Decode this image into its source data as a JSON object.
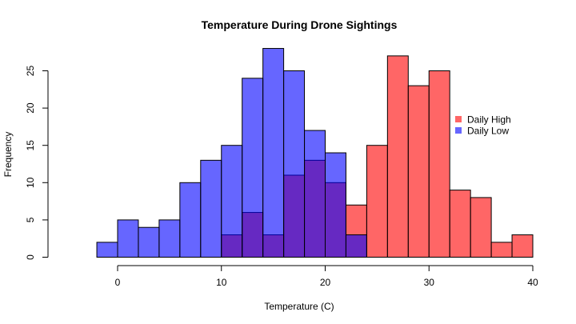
{
  "chart_data": {
    "type": "bar",
    "title": "Temperature During Drone Sightings",
    "xlabel": "Temperature (C)",
    "ylabel": "Frequency",
    "xlim": [
      -2,
      40
    ],
    "ylim": [
      0,
      28
    ],
    "x_ticks": [
      0,
      10,
      20,
      30,
      40
    ],
    "y_ticks": [
      0,
      5,
      10,
      15,
      20,
      25
    ],
    "bin_width": 2,
    "grid": false,
    "legend_position": "right",
    "series": [
      {
        "name": "Daily High",
        "color": "#ff6666",
        "bins": [
          {
            "x0": 10,
            "x1": 12,
            "count": 3
          },
          {
            "x0": 12,
            "x1": 14,
            "count": 6
          },
          {
            "x0": 14,
            "x1": 16,
            "count": 3
          },
          {
            "x0": 16,
            "x1": 18,
            "count": 11
          },
          {
            "x0": 18,
            "x1": 20,
            "count": 13
          },
          {
            "x0": 20,
            "x1": 22,
            "count": 10
          },
          {
            "x0": 22,
            "x1": 24,
            "count": 7
          },
          {
            "x0": 24,
            "x1": 26,
            "count": 15
          },
          {
            "x0": 26,
            "x1": 28,
            "count": 27
          },
          {
            "x0": 28,
            "x1": 30,
            "count": 23
          },
          {
            "x0": 30,
            "x1": 32,
            "count": 25
          },
          {
            "x0": 32,
            "x1": 34,
            "count": 9
          },
          {
            "x0": 34,
            "x1": 36,
            "count": 8
          },
          {
            "x0": 36,
            "x1": 38,
            "count": 2
          },
          {
            "x0": 38,
            "x1": 40,
            "count": 3
          }
        ]
      },
      {
        "name": "Daily Low",
        "color": "#6666ff",
        "bins": [
          {
            "x0": -2,
            "x1": 0,
            "count": 2
          },
          {
            "x0": 0,
            "x1": 2,
            "count": 5
          },
          {
            "x0": 2,
            "x1": 4,
            "count": 4
          },
          {
            "x0": 4,
            "x1": 6,
            "count": 5
          },
          {
            "x0": 6,
            "x1": 8,
            "count": 10
          },
          {
            "x0": 8,
            "x1": 10,
            "count": 13
          },
          {
            "x0": 10,
            "x1": 12,
            "count": 15
          },
          {
            "x0": 12,
            "x1": 14,
            "count": 24
          },
          {
            "x0": 14,
            "x1": 16,
            "count": 28
          },
          {
            "x0": 16,
            "x1": 18,
            "count": 25
          },
          {
            "x0": 18,
            "x1": 20,
            "count": 17
          },
          {
            "x0": 20,
            "x1": 22,
            "count": 14
          },
          {
            "x0": 22,
            "x1": 24,
            "count": 3
          }
        ]
      }
    ]
  }
}
